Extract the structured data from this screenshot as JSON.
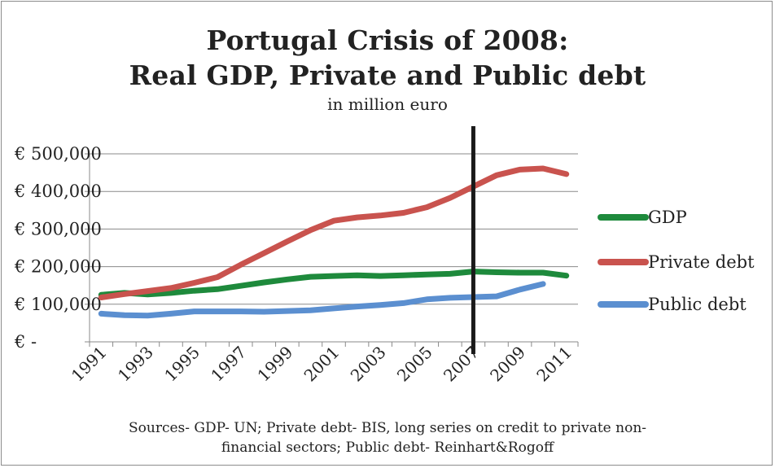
{
  "chart_data": {
    "type": "line",
    "title_line1": "Portugal Crisis of 2008:",
    "title_line2": "Real GDP, Private and Public debt",
    "subtitle": "in million euro",
    "source_line1": "Sources- GDP- UN; Private debt- BIS, long series on credit to private non-",
    "source_line2": "financial sectors; Public debt- Reinhart&Rogoff",
    "xlabel": "",
    "ylabel": "",
    "ylim": [
      0,
      500000
    ],
    "xlim": [
      1991,
      2011
    ],
    "y_tick_values": [
      0,
      100000,
      200000,
      300000,
      400000,
      500000
    ],
    "y_tick_labels": [
      "€ -",
      "€ 100,000",
      "€ 200,000",
      "€ 300,000",
      "€ 400,000",
      "€ 500,000"
    ],
    "x_tick_labels": [
      "1991",
      "1993",
      "1995",
      "1997",
      "1999",
      "2001",
      "2003",
      "2005",
      "2007",
      "2009",
      "2011"
    ],
    "grid": true,
    "legend_position": "right",
    "marker_line": {
      "year": 2007,
      "color": "#1a1a1a"
    },
    "series": [
      {
        "name": "GDP",
        "color": "#1e8a3c",
        "x": [
          1991,
          1992,
          1993,
          1994,
          1995,
          1996,
          1997,
          1998,
          1999,
          2000,
          2001,
          2002,
          2003,
          2004,
          2005,
          2006,
          2007,
          2008,
          2009,
          2010,
          2011
        ],
        "values": [
          125000,
          130000,
          126000,
          130000,
          136000,
          140000,
          149000,
          158000,
          166000,
          173000,
          175000,
          177000,
          175000,
          177000,
          179000,
          181000,
          187000,
          185000,
          184000,
          184000,
          176000
        ]
      },
      {
        "name": "Private debt",
        "color": "#c9534e",
        "x": [
          1991,
          1992,
          1993,
          1994,
          1995,
          1996,
          1997,
          1998,
          1999,
          2000,
          2001,
          2002,
          2003,
          2004,
          2005,
          2006,
          2007,
          2008,
          2009,
          2010,
          2011
        ],
        "values": [
          118000,
          127000,
          135000,
          143000,
          157000,
          172000,
          205000,
          236000,
          267000,
          297000,
          322000,
          331000,
          336000,
          343000,
          358000,
          383000,
          413000,
          443000,
          458000,
          461000,
          446000
        ]
      },
      {
        "name": "Public debt",
        "color": "#5b8fd0",
        "x": [
          1991,
          1992,
          1993,
          1994,
          1995,
          1996,
          1997,
          1998,
          1999,
          2000,
          2001,
          2002,
          2003,
          2004,
          2005,
          2006,
          2007,
          2008,
          2009,
          2010
        ],
        "values": [
          75000,
          71000,
          70000,
          75000,
          81000,
          81000,
          81000,
          80000,
          82000,
          84000,
          89000,
          94000,
          98000,
          103000,
          113000,
          117000,
          119000,
          121000,
          139000,
          154000
        ]
      }
    ]
  }
}
